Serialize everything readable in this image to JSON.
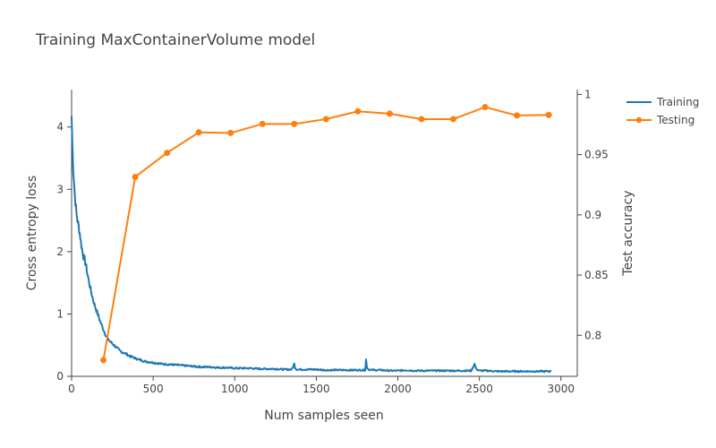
{
  "chart_data": {
    "type": "line",
    "title": "Training MaxContainerVolume model",
    "xlabel": "Num samples seen",
    "ylabel_left": "Cross entropy loss",
    "ylabel_right": "Test accuracy",
    "xlim": [
      0,
      3100
    ],
    "ylim_left": [
      0,
      4.6
    ],
    "ylim_right": [
      0.766,
      1.004
    ],
    "x_ticks": [
      0,
      500,
      1000,
      1500,
      2000,
      2500,
      3000
    ],
    "y_left_ticks": [
      0,
      1,
      2,
      3,
      4
    ],
    "y_right_ticks": [
      0.8,
      0.85,
      0.9,
      0.95,
      1
    ],
    "y_right_tick_labels": [
      "0.8",
      "0.85",
      "0.9",
      "0.95",
      "1"
    ],
    "grid": false,
    "legend_position": "top-right",
    "series": [
      {
        "name": "Training",
        "axis": "left",
        "color": "#1f77b4",
        "mode": "lines",
        "x": [
          0,
          5,
          10,
          20,
          30,
          40,
          50,
          60,
          70,
          80,
          90,
          100,
          120,
          140,
          160,
          180,
          200,
          220,
          240,
          260,
          280,
          300,
          320,
          340,
          360,
          380,
          400,
          450,
          500,
          550,
          600,
          650,
          700,
          750,
          800,
          850,
          900,
          950,
          1000,
          1050,
          1100,
          1150,
          1200,
          1250,
          1300,
          1350,
          1365,
          1370,
          1380,
          1400,
          1450,
          1500,
          1550,
          1600,
          1650,
          1700,
          1750,
          1800,
          1805,
          1810,
          1820,
          1850,
          1900,
          1950,
          2000,
          2050,
          2100,
          2150,
          2200,
          2250,
          2300,
          2350,
          2400,
          2450,
          2470,
          2480,
          2500,
          2550,
          2600,
          2650,
          2700,
          2750,
          2800,
          2850,
          2900,
          2940
        ],
        "values": [
          4.18,
          3.7,
          3.35,
          2.9,
          2.6,
          2.45,
          2.3,
          2.1,
          1.95,
          1.87,
          1.75,
          1.6,
          1.35,
          1.15,
          1.0,
          0.85,
          0.72,
          0.6,
          0.55,
          0.5,
          0.45,
          0.4,
          0.38,
          0.35,
          0.32,
          0.3,
          0.28,
          0.24,
          0.22,
          0.2,
          0.19,
          0.18,
          0.17,
          0.16,
          0.15,
          0.15,
          0.14,
          0.14,
          0.13,
          0.13,
          0.13,
          0.12,
          0.12,
          0.12,
          0.11,
          0.11,
          0.2,
          0.14,
          0.11,
          0.11,
          0.11,
          0.11,
          0.1,
          0.1,
          0.1,
          0.1,
          0.1,
          0.1,
          0.27,
          0.15,
          0.11,
          0.1,
          0.1,
          0.09,
          0.09,
          0.1,
          0.09,
          0.09,
          0.09,
          0.09,
          0.09,
          0.09,
          0.09,
          0.09,
          0.2,
          0.12,
          0.09,
          0.09,
          0.08,
          0.08,
          0.08,
          0.08,
          0.08,
          0.08,
          0.08,
          0.08
        ]
      },
      {
        "name": "Testing",
        "axis": "right",
        "color": "#ff7f0e",
        "mode": "lines+markers",
        "x": [
          195,
          390,
          585,
          780,
          975,
          1170,
          1365,
          1560,
          1755,
          1950,
          2145,
          2340,
          2535,
          2730,
          2925
        ],
        "values": [
          0.7795,
          0.9315,
          0.9515,
          0.9685,
          0.968,
          0.9755,
          0.9755,
          0.9795,
          0.986,
          0.984,
          0.9795,
          0.9795,
          0.9895,
          0.9825,
          0.983
        ]
      }
    ]
  }
}
